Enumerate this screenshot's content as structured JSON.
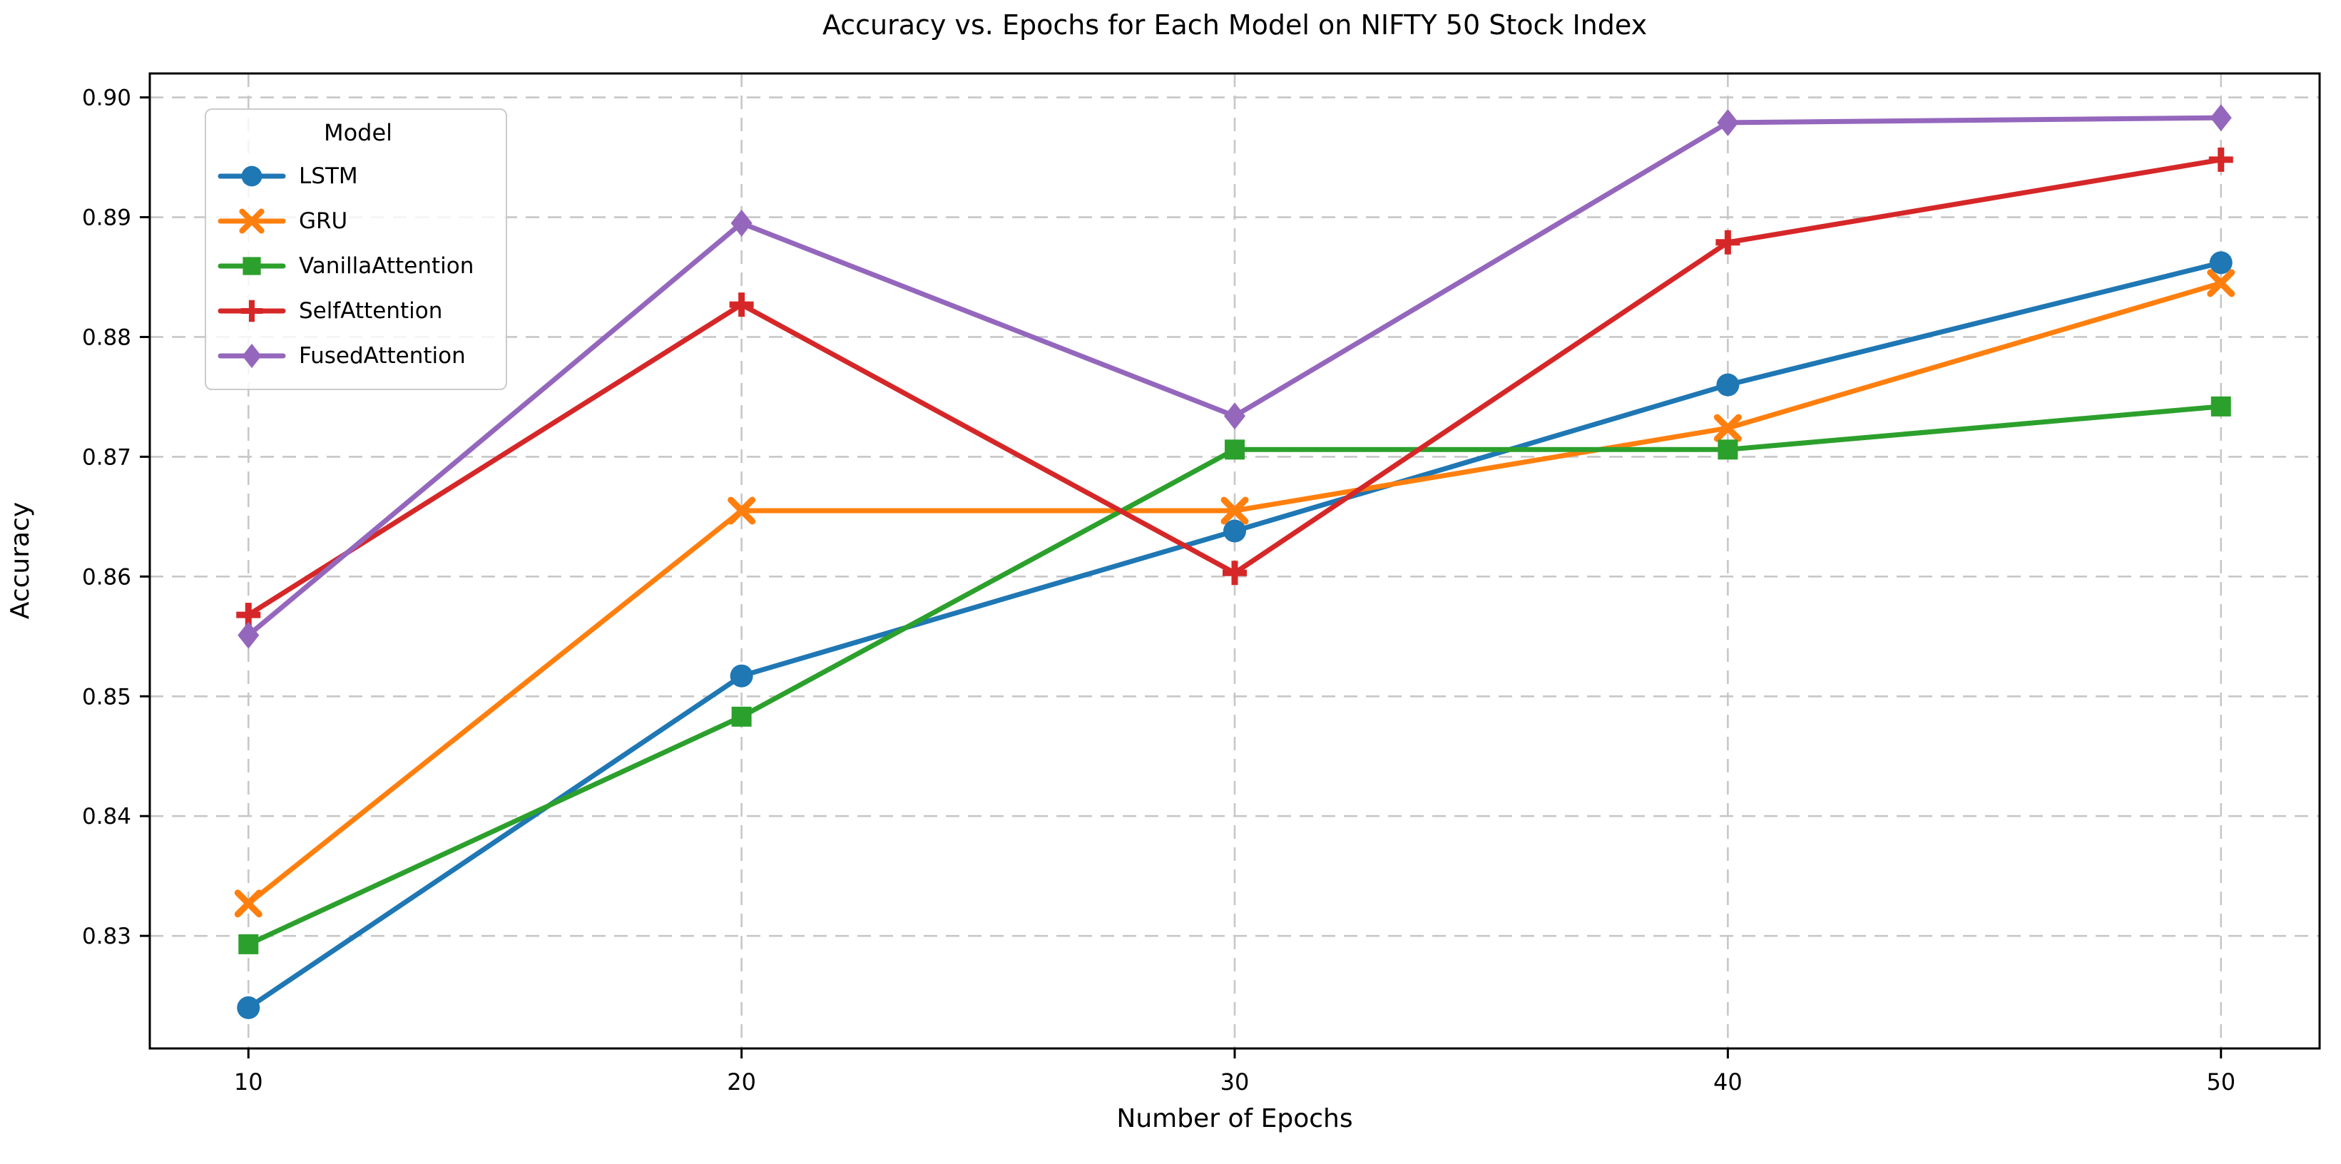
{
  "chart_data": {
    "type": "line",
    "title": "Accuracy vs. Epochs for Each Model on NIFTY 50 Stock Index",
    "xlabel": "Number of Epochs",
    "ylabel": "Accuracy",
    "x": [
      10,
      20,
      30,
      40,
      50
    ],
    "xlim": [
      8,
      52
    ],
    "ylim": [
      0.8206,
      0.902
    ],
    "grid": true,
    "x_ticks": {
      "values": [
        10,
        20,
        30,
        40,
        50
      ],
      "labels": [
        "10",
        "20",
        "30",
        "40",
        "50"
      ]
    },
    "y_ticks": {
      "values": [
        0.83,
        0.84,
        0.85,
        0.86,
        0.87,
        0.88,
        0.89,
        0.9
      ],
      "labels": [
        "0.83",
        "0.84",
        "0.85",
        "0.86",
        "0.87",
        "0.88",
        "0.89",
        "0.90"
      ]
    },
    "legend": {
      "title": "Model",
      "position": "upper left"
    },
    "series": [
      {
        "name": "LSTM",
        "color": "#1f77b4",
        "marker": "circle",
        "values": [
          0.824,
          0.8517,
          0.8638,
          0.876,
          0.8862
        ]
      },
      {
        "name": "GRU",
        "color": "#ff7f0e",
        "marker": "x",
        "values": [
          0.8327,
          0.8655,
          0.8655,
          0.8724,
          0.8845
        ]
      },
      {
        "name": "VanillaAttention",
        "color": "#2ca02c",
        "marker": "square",
        "values": [
          0.8293,
          0.8483,
          0.8706,
          0.8706,
          0.8742
        ]
      },
      {
        "name": "SelfAttention",
        "color": "#d62728",
        "marker": "plus",
        "values": [
          0.8568,
          0.8827,
          0.8603,
          0.8879,
          0.8948
        ]
      },
      {
        "name": "FusedAttention",
        "color": "#9467bd",
        "marker": "diamond",
        "values": [
          0.8551,
          0.8895,
          0.8734,
          0.8979,
          0.8983
        ]
      }
    ],
    "colors": {
      "grid": "#c7c7c7",
      "spine": "#000000",
      "text": "#000000"
    }
  }
}
